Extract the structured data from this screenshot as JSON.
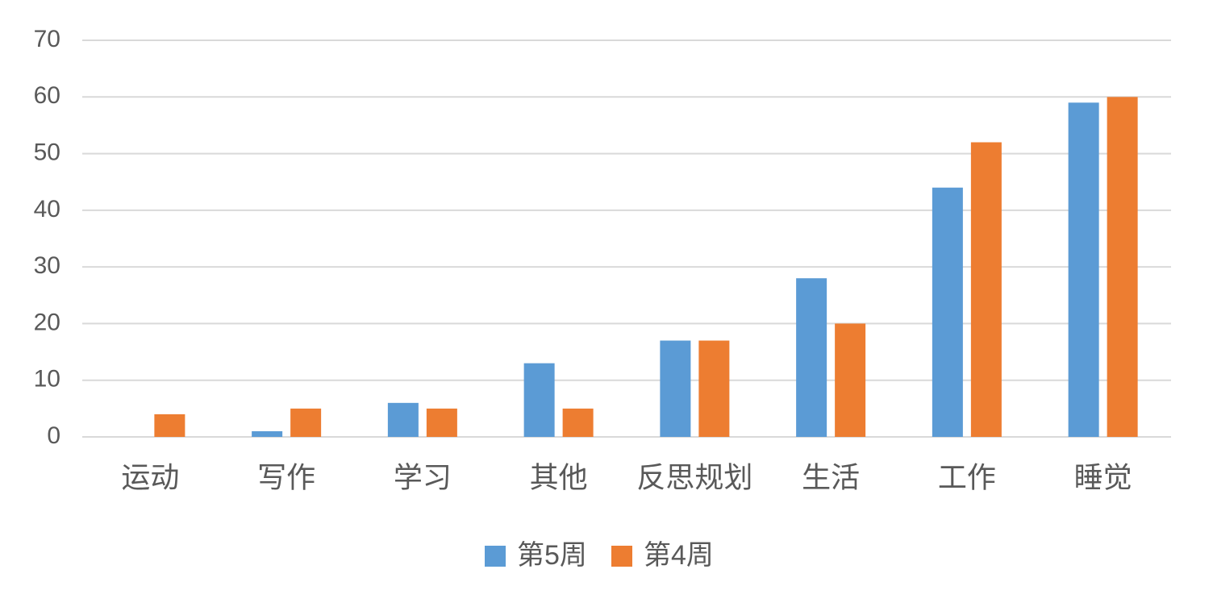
{
  "chart_data": {
    "type": "bar",
    "categories": [
      "运动",
      "写作",
      "学习",
      "其他",
      "反思规划",
      "生活",
      "工作",
      "睡觉"
    ],
    "series": [
      {
        "name": "第5周",
        "color": "#5b9bd5",
        "values": [
          0,
          1,
          6,
          13,
          17,
          28,
          44,
          59
        ]
      },
      {
        "name": "第4周",
        "color": "#ed7d31",
        "values": [
          4,
          5,
          5,
          5,
          17,
          20,
          52,
          60
        ]
      }
    ],
    "ylim": [
      0,
      70
    ],
    "yticks": [
      0,
      10,
      20,
      30,
      40,
      50,
      60,
      70
    ],
    "grid": true,
    "legend": "bottom"
  }
}
